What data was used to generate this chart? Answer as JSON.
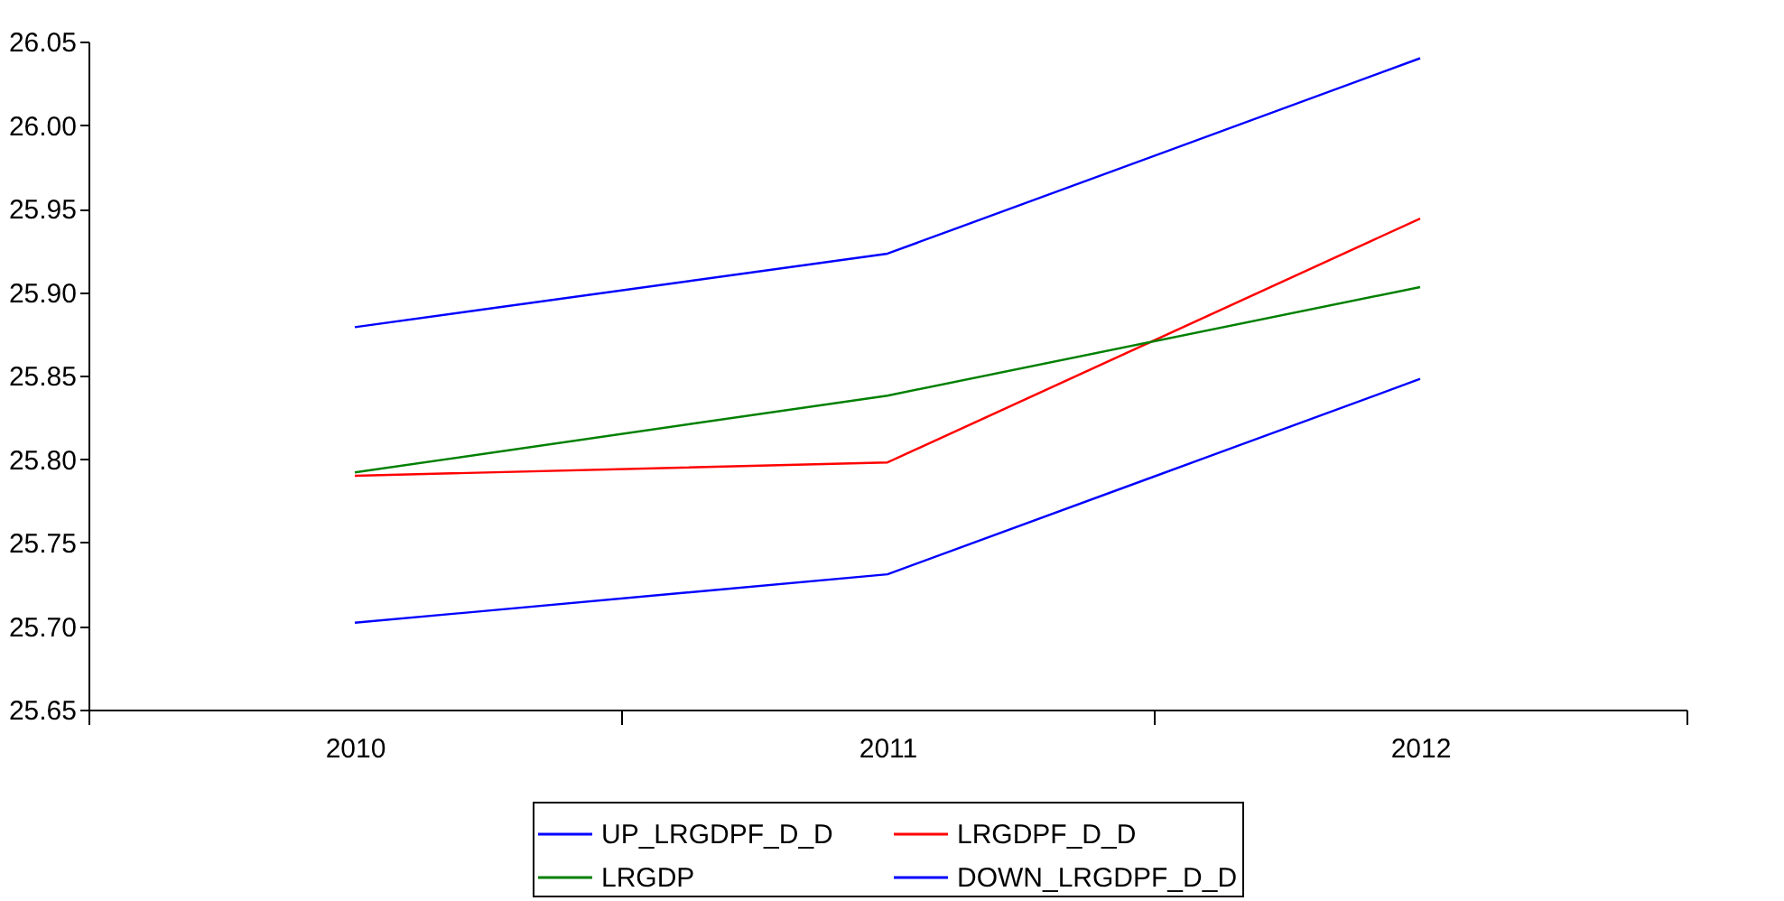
{
  "chart_data": {
    "type": "line",
    "categories": [
      "2010",
      "2011",
      "2012"
    ],
    "series": [
      {
        "name": "UP_LRGDPF_D_D",
        "color": "#0000ff",
        "values": [
          25.879,
          25.923,
          26.04
        ]
      },
      {
        "name": "LRGDPF_D_D",
        "color": "#ff0000",
        "values": [
          25.79,
          25.798,
          25.944
        ]
      },
      {
        "name": "LRGDP",
        "color": "#008000",
        "values": [
          25.792,
          25.838,
          25.903
        ]
      },
      {
        "name": "DOWN_LRGDPF_D_D",
        "color": "#0000ff",
        "values": [
          25.702,
          25.731,
          25.848
        ]
      }
    ],
    "ylim": [
      25.65,
      26.05
    ],
    "yticks": [
      {
        "value": 25.65,
        "label": "25.65"
      },
      {
        "value": 25.7,
        "label": "25.70"
      },
      {
        "value": 25.75,
        "label": "25.75"
      },
      {
        "value": 25.8,
        "label": "25.80"
      },
      {
        "value": 25.85,
        "label": "25.85"
      },
      {
        "value": 25.9,
        "label": "25.90"
      },
      {
        "value": 25.95,
        "label": "25.95"
      },
      {
        "value": 26.0,
        "label": "26.00"
      },
      {
        "value": 26.05,
        "label": "26.05"
      }
    ],
    "grid": false,
    "legend": "bottom"
  }
}
